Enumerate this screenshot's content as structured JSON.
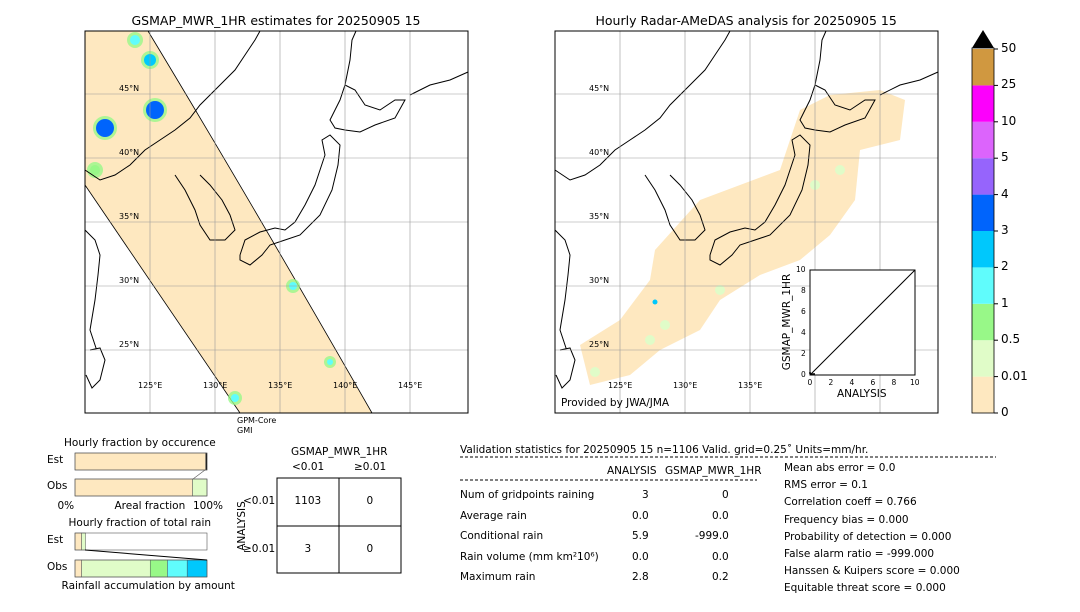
{
  "chart_data": [
    {
      "type": "map",
      "title": "GSMAP_MWR_1HR estimates for 20250905 15",
      "lat_labels": [
        "45°N",
        "40°N",
        "35°N",
        "30°N",
        "25°N"
      ],
      "lon_labels": [
        "125°E",
        "130°E",
        "135°E",
        "140°E",
        "145°E"
      ],
      "annotation": "GPM-Core\nGMI"
    },
    {
      "type": "map",
      "title": "Hourly Radar-AMeDAS analysis for 20250905 15",
      "lat_labels": [
        "45°N",
        "40°N",
        "35°N",
        "30°N",
        "25°N"
      ],
      "lon_labels": [
        "125°E",
        "130°E",
        "135°E"
      ],
      "annotation": "Provided by JWA/JMA"
    },
    {
      "type": "scatter",
      "xlabel": "ANALYSIS",
      "ylabel": "GSMAP_MWR_1HR",
      "xlim": [
        0,
        10
      ],
      "ylim": [
        0,
        10
      ],
      "ticks": [
        "0",
        "2",
        "4",
        "6",
        "8",
        "10"
      ]
    },
    {
      "type": "colorbar",
      "ticks": [
        "0",
        "0.01",
        "0.5",
        "1",
        "2",
        "3",
        "4",
        "5",
        "10",
        "25",
        "50"
      ],
      "colors": [
        "#fee8c0",
        "#e0fcc8",
        "#98f888",
        "#60fcfc",
        "#00c8fc",
        "#0064fc",
        "#9664fc",
        "#dc64fc",
        "#fc00fc",
        "#d09840"
      ],
      "extend": "max"
    },
    {
      "type": "bar",
      "title": "Hourly fraction by occurence",
      "xlabel": "Areal fraction",
      "rows": [
        "Est",
        "Obs"
      ],
      "x_ticks": [
        "0%",
        "100%"
      ],
      "series": {
        "Est": [
          {
            "color": "#fee8c0",
            "value": 99
          },
          {
            "color": "#000000",
            "value": 1
          }
        ],
        "Obs": [
          {
            "color": "#fee8c0",
            "value": 89
          },
          {
            "color": "#e0fcc8",
            "value": 11
          }
        ]
      }
    },
    {
      "type": "bar",
      "title": "Hourly fraction of total rain",
      "xlabel": "Rainfall accumulation by amount",
      "rows": [
        "Est",
        "Obs"
      ],
      "series": {
        "Est": [
          {
            "color": "#fee8c0",
            "value": 5
          },
          {
            "color": "#e0fcc8",
            "value": 3
          }
        ],
        "Obs": [
          {
            "color": "#fee8c0",
            "value": 5
          },
          {
            "color": "#e0fcc8",
            "value": 52
          },
          {
            "color": "#98f888",
            "value": 13
          },
          {
            "color": "#60fcfc",
            "value": 15
          },
          {
            "color": "#00c8fc",
            "value": 15
          }
        ]
      }
    },
    {
      "type": "table",
      "title": "GSMAP_MWR_1HR",
      "col_headers": [
        "<0.01",
        "≥0.01"
      ],
      "row_title": "ANALYSIS",
      "row_headers": [
        "<0.01",
        "≥0.01"
      ],
      "cells": [
        [
          "1103",
          "0"
        ],
        [
          "3",
          "0"
        ]
      ]
    }
  ],
  "stats": {
    "title": "Validation statistics for 20250905 15  n=1106 Valid. grid=0.25˚ Units=mm/hr.",
    "col1": "ANALYSIS",
    "col2": "GSMAP_MWR_1HR",
    "rows": [
      [
        "Num of gridpoints raining",
        "3",
        "0"
      ],
      [
        "Average rain",
        "0.0",
        "0.0"
      ],
      [
        "Conditional rain",
        "5.9",
        "-999.0"
      ],
      [
        "Rain volume (mm km²10⁶)",
        "0.0",
        "0.0"
      ],
      [
        "Maximum rain",
        "2.8",
        "0.2"
      ]
    ],
    "scores": [
      "Mean abs error =    0.0",
      "RMS error =    0.1",
      "Correlation coeff =  0.766",
      "Frequency bias =  0.000",
      "Probability of detection =  0.000",
      "False alarm ratio = -999.000",
      "Hanssen & Kuipers score =  0.000",
      "Equitable threat score =  0.000"
    ]
  }
}
